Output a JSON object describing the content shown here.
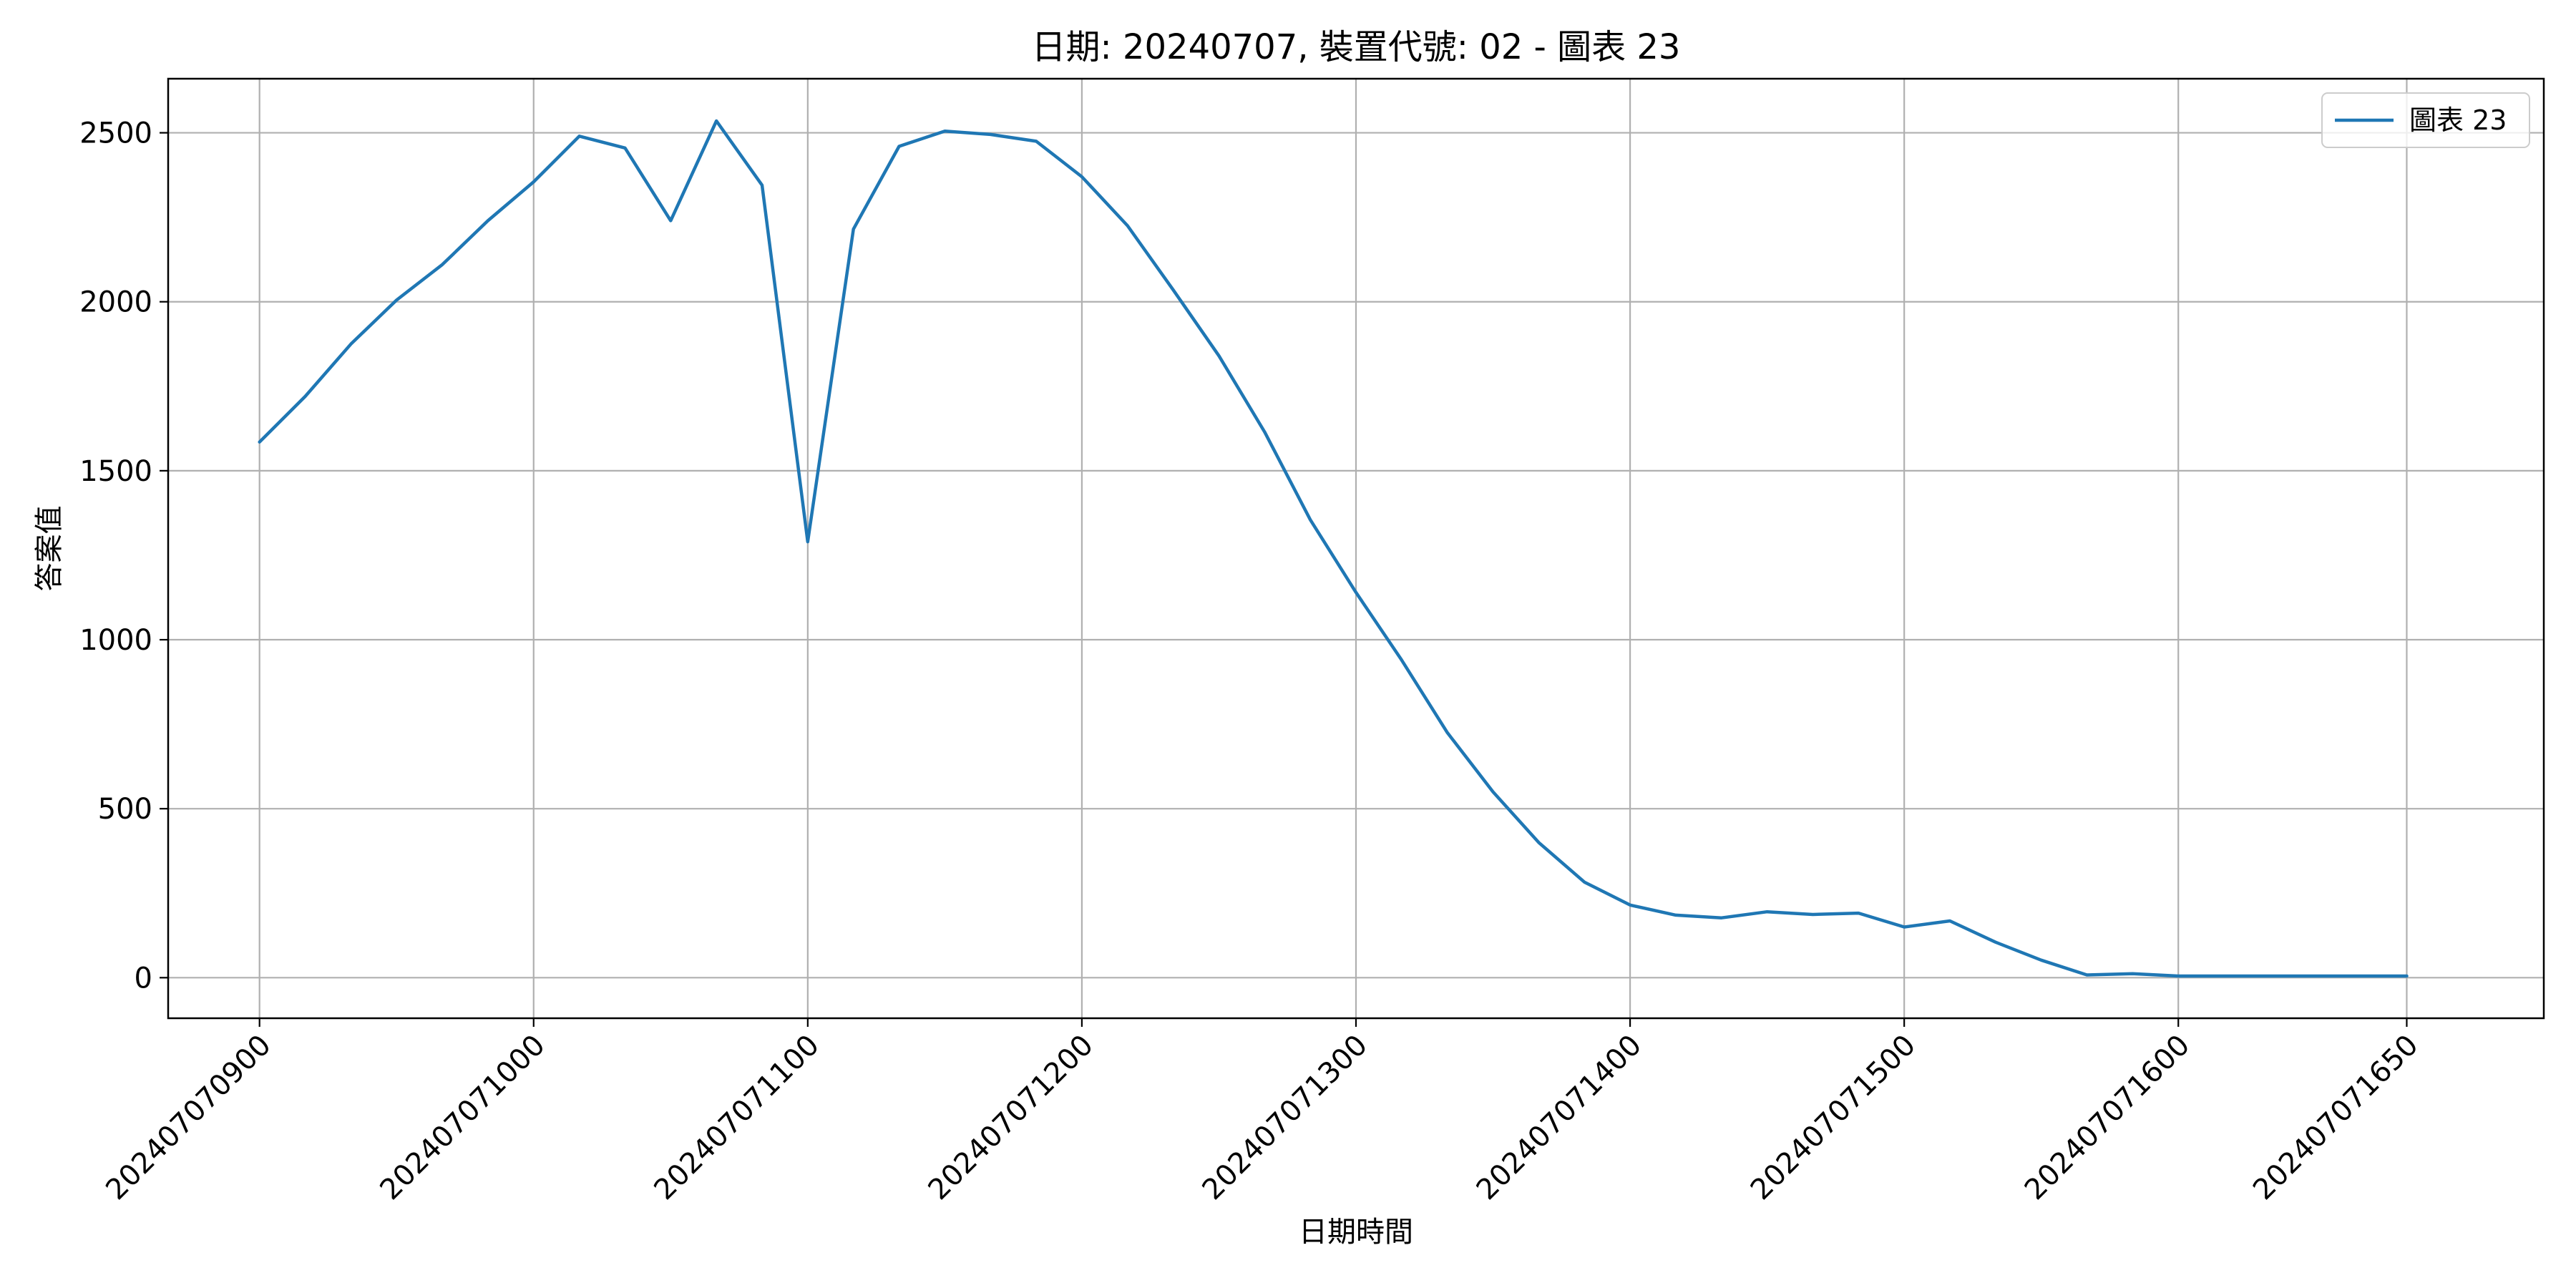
{
  "chart_data": {
    "type": "line",
    "title": "日期: 20240707, 裝置代號: 02 - 圖表 23",
    "xlabel": "日期時間",
    "ylabel": "答案值",
    "ylim": [
      -120,
      2660
    ],
    "xlim": [
      -4,
      100
    ],
    "grid": true,
    "legend_position": "top-right",
    "y_ticks": [
      0,
      500,
      1000,
      1500,
      2000,
      2500
    ],
    "x_ticks": [
      {
        "pos": 0,
        "label": "202407070900"
      },
      {
        "pos": 12,
        "label": "202407071000"
      },
      {
        "pos": 24,
        "label": "202407071100"
      },
      {
        "pos": 36,
        "label": "202407071200"
      },
      {
        "pos": 48,
        "label": "202407071300"
      },
      {
        "pos": 60,
        "label": "202407071400"
      },
      {
        "pos": 72,
        "label": "202407071500"
      },
      {
        "pos": 84,
        "label": "202407071600"
      },
      {
        "pos": 94,
        "label": "202407071650"
      }
    ],
    "x": [
      0,
      2,
      4,
      6,
      8,
      10,
      12,
      14,
      16,
      18,
      20,
      22,
      24,
      26,
      28,
      30,
      32,
      34,
      36,
      38,
      40,
      42,
      44,
      46,
      48,
      50,
      52,
      54,
      56,
      58,
      60,
      62,
      64,
      66,
      68,
      70,
      72,
      74,
      76,
      78,
      80,
      82,
      84,
      86,
      88,
      90,
      92,
      94
    ],
    "series": [
      {
        "name": "圖表 23",
        "color": "#1f77b4",
        "values": [
          1585,
          1720,
          1875,
          2005,
          2110,
          2240,
          2355,
          2490,
          2455,
          2240,
          2535,
          2345,
          1290,
          2215,
          2460,
          2505,
          2495,
          2475,
          2370,
          2225,
          2035,
          1840,
          1615,
          1355,
          1140,
          940,
          725,
          550,
          400,
          283,
          215,
          185,
          177,
          195,
          187,
          191,
          150,
          168,
          105,
          52,
          8,
          12,
          5,
          5,
          5,
          5,
          5,
          5
        ]
      }
    ]
  }
}
